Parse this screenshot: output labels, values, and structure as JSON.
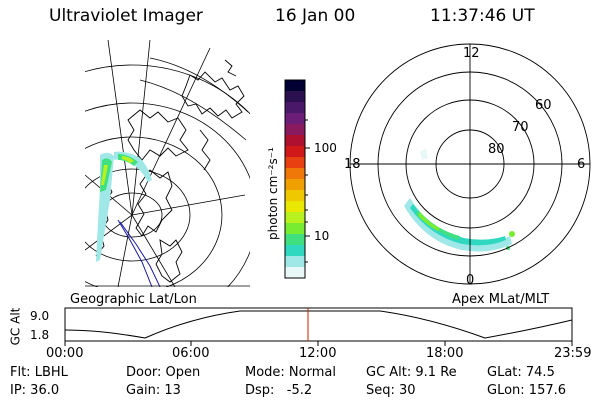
{
  "header": {
    "instrument": "Ultraviolet Imager",
    "date": "16 Jan 00",
    "time": "11:37:46 UT"
  },
  "colorbar": {
    "unit_label": "photon cm⁻²s⁻¹",
    "ticks": [
      "100",
      "10"
    ],
    "colors": [
      "#000033",
      "#2b1050",
      "#4a1868",
      "#6a1e78",
      "#8a1a60",
      "#b01030",
      "#d01818",
      "#e84010",
      "#f07808",
      "#f0a000",
      "#f0c800",
      "#e8e800",
      "#b8f020",
      "#78ec30",
      "#40e080",
      "#30d8c0",
      "#a0e8e8",
      "#e8f8f8"
    ]
  },
  "geo_panel": {
    "label": "Geographic Lat/Lon"
  },
  "polar_panel": {
    "label": "Apex MLat/MLT",
    "mlt_labels": {
      "top": "12",
      "left": "18",
      "right": "6",
      "bottom": "0"
    },
    "lat_labels": [
      "60",
      "70",
      "80"
    ]
  },
  "timeline": {
    "ylabel": "GC Alt",
    "ymax": "9.0",
    "ymin": "1.8",
    "ticks": [
      "00:00",
      "06:00",
      "12:00",
      "18:00",
      "23:59"
    ],
    "marker_color": "#cc2200"
  },
  "status": {
    "row1": {
      "flt": "Flt: LBHL",
      "door": "Door: Open",
      "mode": "Mode: Normal",
      "gcalt": "GC Alt: 9.1 Re",
      "glat": "GLat: 74.5"
    },
    "row2": {
      "ip": "IP: 36.0",
      "gain": "Gain: 13",
      "dsp": "Dsp:   -5.2",
      "seq": "Seq: 30",
      "glon": "GLon: 157.6"
    }
  }
}
